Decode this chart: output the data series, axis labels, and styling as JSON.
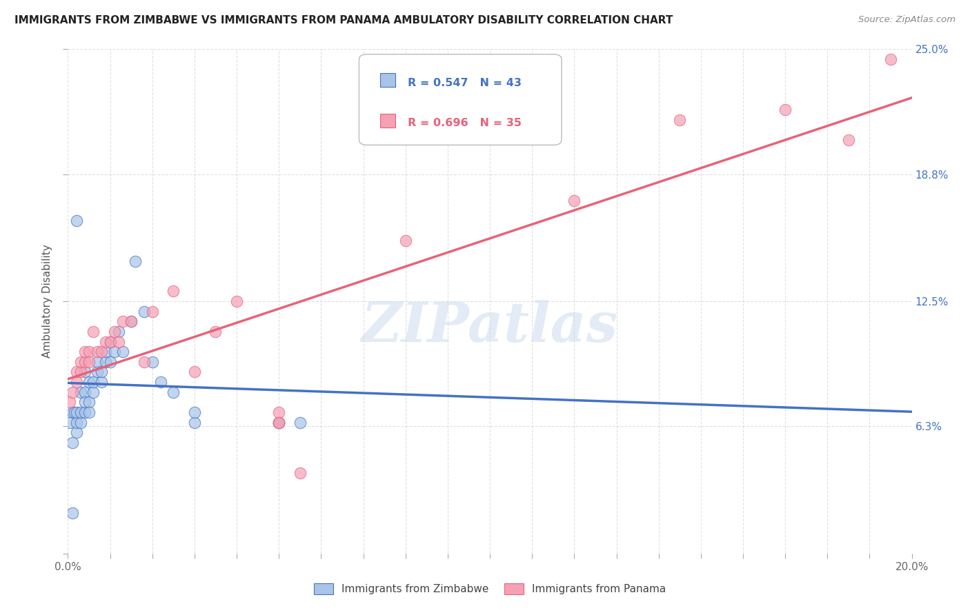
{
  "title": "IMMIGRANTS FROM ZIMBABWE VS IMMIGRANTS FROM PANAMA AMBULATORY DISABILITY CORRELATION CHART",
  "source": "Source: ZipAtlas.com",
  "ylabel": "Ambulatory Disability",
  "legend_label_1": "Immigrants from Zimbabwe",
  "legend_label_2": "Immigrants from Panama",
  "R1": 0.547,
  "N1": 43,
  "R2": 0.696,
  "N2": 35,
  "color_zimbabwe": "#a8c4e8",
  "color_panama": "#f4a0b5",
  "line_color_zimbabwe": "#4472c4",
  "line_color_panama": "#e8627a",
  "xlim": [
    0.0,
    0.2
  ],
  "ylim": [
    0.0,
    0.25
  ],
  "ytick_positions": [
    0.0,
    0.063,
    0.125,
    0.188,
    0.25
  ],
  "ytick_labels": [
    "",
    "6.3%",
    "12.5%",
    "18.8%",
    "25.0%"
  ],
  "watermark": "ZIPatlas",
  "background_color": "#ffffff",
  "grid_color": "#cccccc",
  "zimbabwe_x": [
    0.0005,
    0.001,
    0.001,
    0.0015,
    0.002,
    0.002,
    0.002,
    0.003,
    0.003,
    0.003,
    0.004,
    0.004,
    0.004,
    0.004,
    0.005,
    0.005,
    0.005,
    0.006,
    0.006,
    0.007,
    0.007,
    0.008,
    0.008,
    0.009,
    0.009,
    0.01,
    0.01,
    0.011,
    0.012,
    0.013,
    0.015,
    0.016,
    0.018,
    0.02,
    0.022,
    0.025,
    0.03,
    0.03,
    0.05,
    0.05,
    0.055,
    0.002,
    0.001
  ],
  "zimbabwe_y": [
    0.065,
    0.055,
    0.07,
    0.07,
    0.06,
    0.065,
    0.07,
    0.065,
    0.07,
    0.08,
    0.07,
    0.08,
    0.09,
    0.075,
    0.075,
    0.085,
    0.07,
    0.08,
    0.085,
    0.09,
    0.095,
    0.085,
    0.09,
    0.095,
    0.1,
    0.095,
    0.105,
    0.1,
    0.11,
    0.1,
    0.115,
    0.145,
    0.12,
    0.095,
    0.085,
    0.08,
    0.065,
    0.07,
    0.065,
    0.065,
    0.065,
    0.165,
    0.02
  ],
  "panama_x": [
    0.0005,
    0.001,
    0.002,
    0.002,
    0.003,
    0.003,
    0.004,
    0.004,
    0.005,
    0.005,
    0.006,
    0.007,
    0.008,
    0.009,
    0.01,
    0.011,
    0.012,
    0.013,
    0.015,
    0.018,
    0.02,
    0.025,
    0.03,
    0.035,
    0.04,
    0.05,
    0.05,
    0.05,
    0.055,
    0.08,
    0.12,
    0.145,
    0.17,
    0.185,
    0.195
  ],
  "panama_y": [
    0.075,
    0.08,
    0.085,
    0.09,
    0.09,
    0.095,
    0.095,
    0.1,
    0.1,
    0.095,
    0.11,
    0.1,
    0.1,
    0.105,
    0.105,
    0.11,
    0.105,
    0.115,
    0.115,
    0.095,
    0.12,
    0.13,
    0.09,
    0.11,
    0.125,
    0.065,
    0.07,
    0.065,
    0.04,
    0.155,
    0.175,
    0.215,
    0.22,
    0.205,
    0.245
  ]
}
